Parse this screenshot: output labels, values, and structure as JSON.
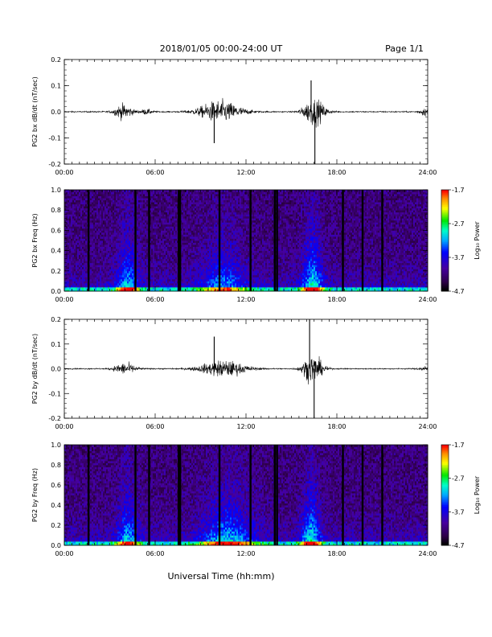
{
  "header": {
    "title": "2018/01/05  00:00-24:00 UT",
    "page": "Page 1/1"
  },
  "xlabel": "Universal Time (hh:mm)",
  "x_ticks": [
    "00:00",
    "06:00",
    "12:00",
    "18:00",
    "24:00"
  ],
  "chart_data": [
    {
      "type": "line",
      "ylabel": "PG2 bx dB/dt (nT/sec)",
      "ylim": [
        -0.2,
        0.2
      ],
      "xlim_hours": [
        0,
        24
      ],
      "y_ticks": [
        "0.2",
        "0.1",
        "0.0",
        "-0.1",
        "-0.2"
      ],
      "bursts": [
        {
          "center_h": 3.9,
          "width_h": 1.2,
          "amp": 0.06
        },
        {
          "center_h": 5.4,
          "width_h": 0.8,
          "amp": 0.02
        },
        {
          "center_h": 10.3,
          "width_h": 2.8,
          "amp": 0.09
        },
        {
          "center_h": 16.5,
          "width_h": 1.4,
          "amp": 0.11
        },
        {
          "center_h": 23.8,
          "width_h": 0.8,
          "amp": 0.03
        }
      ],
      "spikes": [
        {
          "t_h": 16.55,
          "v": -0.2
        },
        {
          "t_h": 16.3,
          "v": 0.12
        },
        {
          "t_h": 9.9,
          "v": -0.12
        }
      ]
    },
    {
      "type": "heatmap",
      "ylabel": "PG2 bx Freq (Hz)",
      "ylim": [
        0.0,
        1.0
      ],
      "xlim_hours": [
        0,
        24
      ],
      "y_ticks": [
        "1.0",
        "0.8",
        "0.6",
        "0.4",
        "0.2",
        "0.0"
      ],
      "colorbar": {
        "label": "Log₁₀ Power",
        "ticks": [
          "-1.7",
          "-2.7",
          "-3.7",
          "-4.7"
        ],
        "range": [
          -4.7,
          -1.7
        ]
      },
      "activity": [
        {
          "center_h": 4.2,
          "width_h": 1.5,
          "amp": 1.0
        },
        {
          "center_h": 10.5,
          "width_h": 3.0,
          "amp": 0.8
        },
        {
          "center_h": 16.4,
          "width_h": 1.4,
          "amp": 1.2
        }
      ],
      "gaps_h": [
        1.6,
        4.7,
        5.6,
        7.55,
        7.65,
        10.25,
        12.3,
        13.9,
        14.05,
        18.4,
        19.7,
        21.0
      ]
    },
    {
      "type": "line",
      "ylabel": "PG2 by dB/dt (nT/sec)",
      "ylim": [
        -0.2,
        0.2
      ],
      "xlim_hours": [
        0,
        24
      ],
      "y_ticks": [
        "0.2",
        "0.1",
        "0.0",
        "-0.1",
        "-0.2"
      ],
      "bursts": [
        {
          "center_h": 4.0,
          "width_h": 1.4,
          "amp": 0.05
        },
        {
          "center_h": 10.5,
          "width_h": 3.0,
          "amp": 0.07
        },
        {
          "center_h": 16.4,
          "width_h": 1.3,
          "amp": 0.12
        },
        {
          "center_h": 23.8,
          "width_h": 0.8,
          "amp": 0.02
        }
      ],
      "spikes": [
        {
          "t_h": 16.2,
          "v": 0.2
        },
        {
          "t_h": 16.5,
          "v": -0.2
        },
        {
          "t_h": 9.9,
          "v": 0.13
        }
      ]
    },
    {
      "type": "heatmap",
      "ylabel": "PG2 by Freq (Hz)",
      "ylim": [
        0.0,
        1.0
      ],
      "xlim_hours": [
        0,
        24
      ],
      "y_ticks": [
        "1.0",
        "0.8",
        "0.6",
        "0.4",
        "0.2",
        "0.0"
      ],
      "colorbar": {
        "label": "Log₁₀ Power",
        "ticks": [
          "-1.7",
          "-2.7",
          "-3.7",
          "-4.7"
        ],
        "range": [
          -4.7,
          -1.7
        ]
      },
      "activity": [
        {
          "center_h": 4.2,
          "width_h": 1.5,
          "amp": 1.0
        },
        {
          "center_h": 10.8,
          "width_h": 3.5,
          "amp": 1.0
        },
        {
          "center_h": 16.3,
          "width_h": 1.3,
          "amp": 1.2
        }
      ],
      "gaps_h": [
        1.6,
        4.7,
        5.6,
        7.55,
        7.65,
        10.25,
        12.3,
        13.9,
        14.05,
        18.4,
        19.7,
        21.0
      ]
    }
  ]
}
